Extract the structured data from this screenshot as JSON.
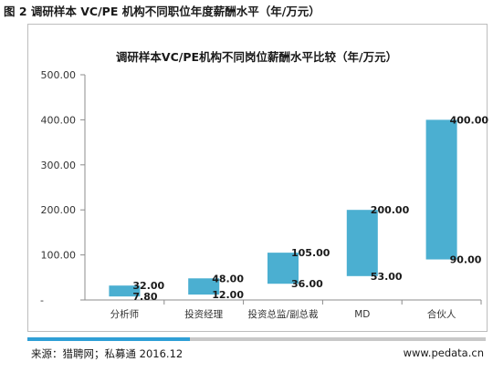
{
  "figure_title": "图 2 调研样本 VC/PE 机构不同职位年度薪酬水平（年/万元）",
  "footer": {
    "source": "来源：猎聘网；私募通 2016.12",
    "site": "www.pedata.cn"
  },
  "chart_data": {
    "type": "bar",
    "subtype": "floating-range",
    "title": "调研样本VC/PE机构不同岗位薪酬水平比较（年/万元）",
    "xlabel": "",
    "ylabel": "",
    "ylim": [
      0,
      500
    ],
    "yticks": [
      0,
      100,
      200,
      300,
      400,
      500
    ],
    "ytick_labels": [
      "-",
      "100.00",
      "200.00",
      "300.00",
      "400.00",
      "500.00"
    ],
    "categories": [
      "分析师",
      "投资经理",
      "投资总监/副总裁",
      "MD",
      "合伙人"
    ],
    "low": [
      7.8,
      12,
      36,
      53,
      90
    ],
    "high": [
      32,
      48,
      105,
      200,
      400
    ],
    "low_labels": [
      "7.80",
      "12.00",
      "36.00",
      "53.00",
      "90.00"
    ],
    "high_labels": [
      "32.00",
      "48.00",
      "105.00",
      "200.00",
      "400.00"
    ],
    "bar_color": "#4bafd1",
    "grid": false,
    "legend": "none"
  }
}
